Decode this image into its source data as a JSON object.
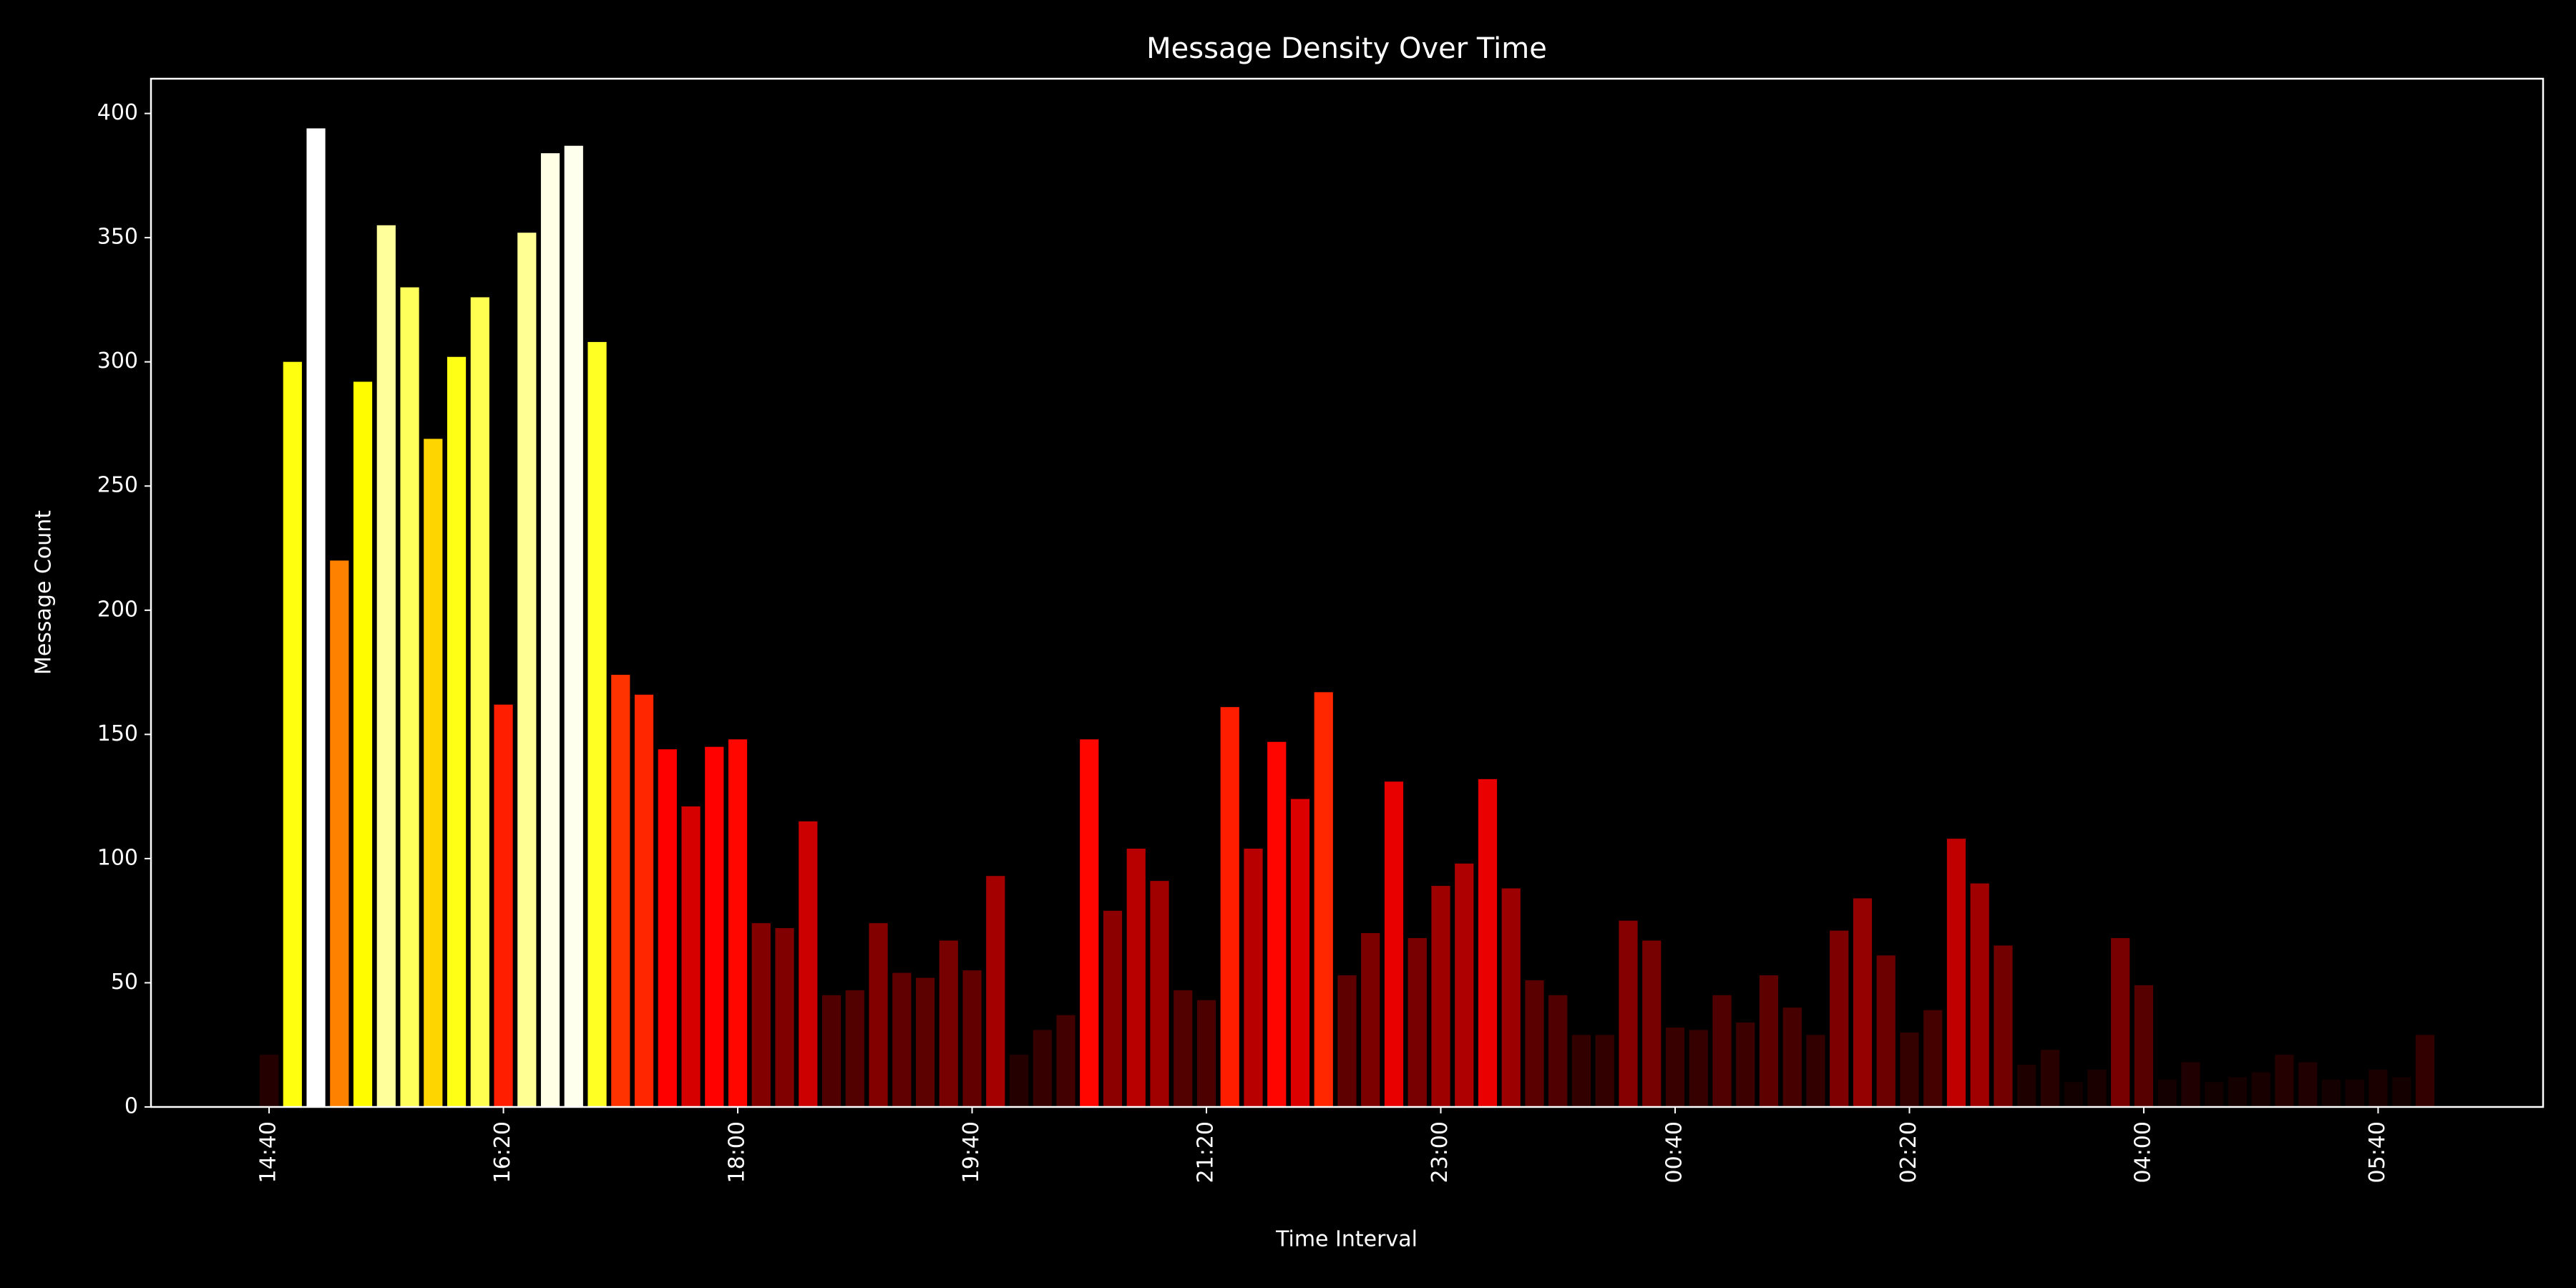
{
  "chart_data": {
    "type": "bar",
    "title": "Message Density Over Time",
    "x_label": "Time Interval",
    "y_label": "Message Count",
    "colormap": "hot",
    "categories": [
      "14:40",
      null,
      null,
      null,
      null,
      null,
      null,
      null,
      null,
      null,
      "16:20",
      null,
      null,
      null,
      null,
      null,
      null,
      null,
      null,
      null,
      "18:00",
      null,
      null,
      null,
      null,
      null,
      null,
      null,
      null,
      null,
      "19:40",
      null,
      null,
      null,
      null,
      null,
      null,
      null,
      null,
      null,
      "21:20",
      null,
      null,
      null,
      null,
      null,
      null,
      null,
      null,
      null,
      "23:00",
      null,
      null,
      null,
      null,
      null,
      null,
      null,
      null,
      null,
      "00:40",
      null,
      null,
      null,
      null,
      null,
      null,
      null,
      null,
      null,
      "02:20",
      null,
      null,
      null,
      null,
      null,
      null,
      null,
      null,
      null,
      "04:00",
      null,
      null,
      null,
      null,
      null,
      null,
      null,
      null,
      null,
      "05:40",
      null,
      null
    ],
    "values": [
      21,
      300,
      394,
      220,
      292,
      355,
      330,
      269,
      302,
      326,
      162,
      352,
      384,
      387,
      308,
      174,
      166,
      144,
      121,
      145,
      148,
      74,
      72,
      115,
      45,
      47,
      74,
      54,
      52,
      67,
      55,
      93,
      21,
      31,
      37,
      148,
      79,
      104,
      91,
      47,
      43,
      161,
      104,
      147,
      124,
      167,
      53,
      70,
      131,
      68,
      89,
      98,
      132,
      88,
      51,
      45,
      29,
      29,
      75,
      67,
      32,
      31,
      45,
      34,
      53,
      40,
      29,
      71,
      84,
      61,
      30,
      39,
      108,
      90,
      65,
      17,
      23,
      10,
      15,
      68,
      49,
      11,
      18,
      10,
      12,
      14,
      21,
      18,
      11,
      11,
      15,
      12,
      29
    ],
    "ylim": [
      0,
      414
    ],
    "yticks": [
      0,
      50,
      100,
      150,
      200,
      250,
      300,
      350,
      400
    ]
  }
}
